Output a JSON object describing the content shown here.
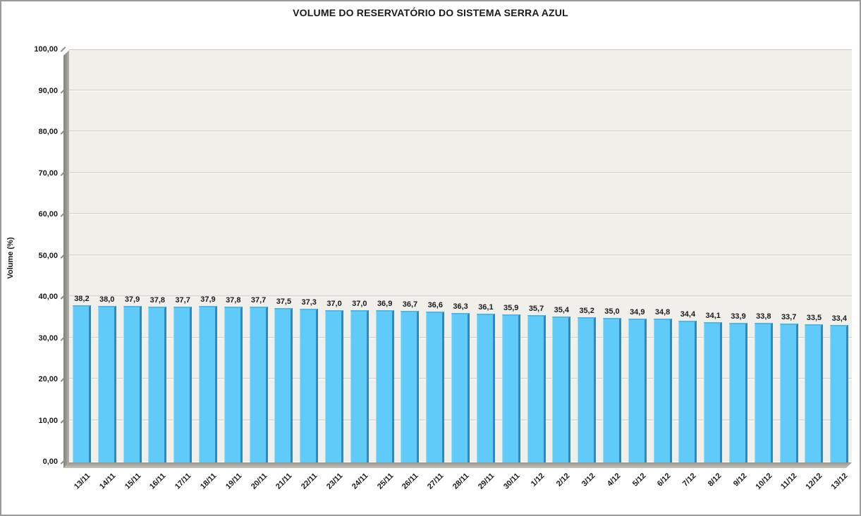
{
  "title": "VOLUME DO RESERVATÓRIO DO SISTEMA SERRA AZUL",
  "colors": {
    "bar_fill": "#60cbf8",
    "bar_side": "#3088bb",
    "bar_top": "#52b6e6",
    "plot_background": "#f1efe9",
    "wall_gray": "#97958e",
    "frame_border": "#9b9b9b",
    "text": "#1a1a1a"
  },
  "chart_data": {
    "type": "bar",
    "title": "VOLUME DO RESERVATÓRIO DO SISTEMA SERRA AZUL",
    "xlabel": "",
    "ylabel": "Volume (%)",
    "ylim": [
      0,
      100
    ],
    "y_tick_step": 10,
    "y_tick_labels": [
      "0,00",
      "10,00",
      "20,00",
      "30,00",
      "40,00",
      "50,00",
      "60,00",
      "70,00",
      "80,00",
      "90,00",
      "100,00"
    ],
    "grid": true,
    "legend": false,
    "style": "3d-column",
    "categories": [
      "13/11",
      "14/11",
      "15/11",
      "16/11",
      "17/11",
      "18/11",
      "19/11",
      "20/11",
      "21/11",
      "22/11",
      "23/11",
      "24/11",
      "25/11",
      "26/11",
      "27/11",
      "28/11",
      "29/11",
      "30/11",
      "1/12",
      "2/12",
      "3/12",
      "4/12",
      "5/12",
      "6/12",
      "7/12",
      "8/12",
      "9/12",
      "10/12",
      "11/12",
      "12/12",
      "13/12"
    ],
    "values": [
      38.2,
      38.0,
      37.9,
      37.8,
      37.7,
      37.9,
      37.8,
      37.7,
      37.5,
      37.3,
      37.0,
      37.0,
      36.9,
      36.7,
      36.6,
      36.3,
      36.1,
      35.9,
      35.7,
      35.4,
      35.2,
      35.0,
      34.9,
      34.8,
      34.4,
      34.1,
      33.9,
      33.8,
      33.7,
      33.5,
      33.4
    ],
    "value_labels": [
      "38,2",
      "38,0",
      "37,9",
      "37,8",
      "37,7",
      "37,9",
      "37,8",
      "37,7",
      "37,5",
      "37,3",
      "37,0",
      "37,0",
      "36,9",
      "36,7",
      "36,6",
      "36,3",
      "36,1",
      "35,9",
      "35,7",
      "35,4",
      "35,2",
      "35,0",
      "34,9",
      "34,8",
      "34,4",
      "34,1",
      "33,9",
      "33,8",
      "33,7",
      "33,5",
      "33,4"
    ]
  }
}
